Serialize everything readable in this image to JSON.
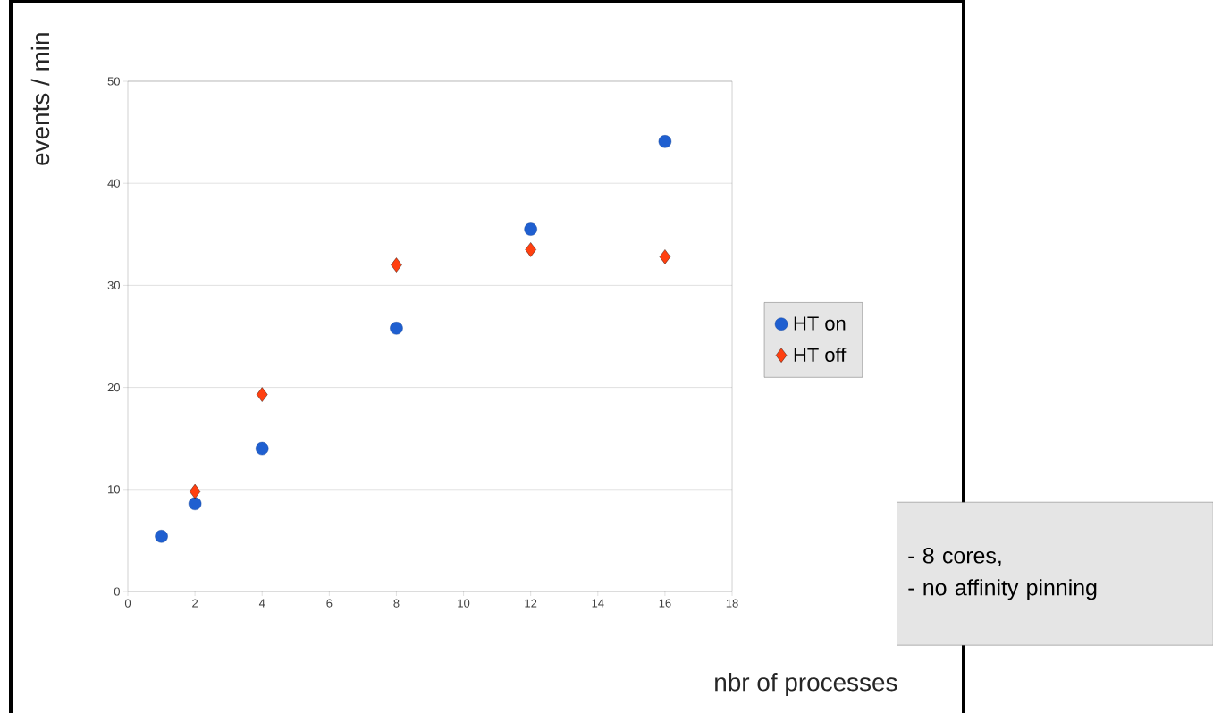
{
  "chart_data": {
    "type": "scatter",
    "xlabel": "nbr of processes",
    "ylabel": "events / min",
    "xlim": [
      0,
      18
    ],
    "xticks": [
      0,
      2,
      4,
      6,
      8,
      10,
      12,
      14,
      16,
      18
    ],
    "ylim": [
      0,
      50
    ],
    "yticks": [
      0,
      10,
      20,
      30,
      40,
      50
    ],
    "grid": "y",
    "legend": "right",
    "series": [
      {
        "name": "HT on",
        "color": "#1f5fd0",
        "marker": "circle",
        "x": [
          1,
          2,
          4,
          8,
          12,
          16
        ],
        "values": [
          5.4,
          8.6,
          14.0,
          25.8,
          35.5,
          44.1
        ]
      },
      {
        "name": "HT off",
        "color": "#ff4010",
        "marker": "diamond",
        "x": [
          2,
          4,
          8,
          12,
          16
        ],
        "values": [
          9.8,
          19.3,
          32.0,
          33.5,
          32.8
        ]
      }
    ],
    "annotations": [
      "- 8 cores,",
      "- no affinity pinning"
    ]
  }
}
